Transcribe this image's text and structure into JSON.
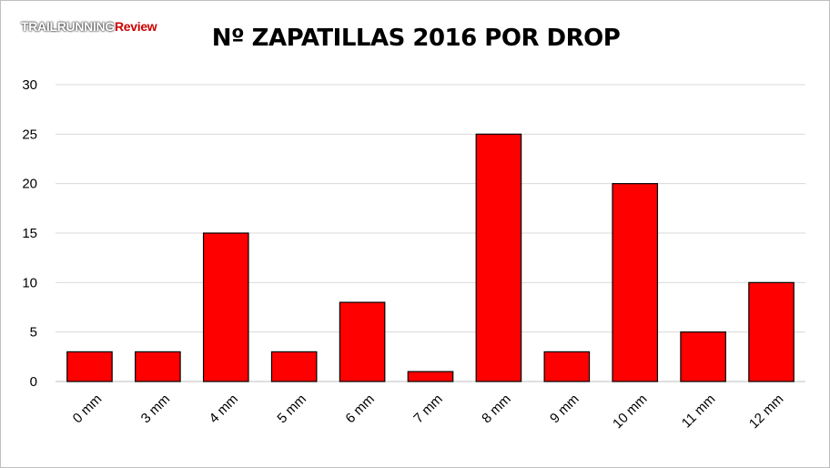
{
  "watermark": {
    "part1": "TRAILRUNNING",
    "part2": "Review"
  },
  "colors": {
    "bar": "#ff0000",
    "bar_stroke": "#000000",
    "grid": "#d9d9d9",
    "axis": "#bfbfbf"
  },
  "chart_data": {
    "type": "bar",
    "title": "Nº ZAPATILLAS 2016 POR DROP",
    "xlabel": "",
    "ylabel": "",
    "categories": [
      "0 mm",
      "3 mm",
      "4 mm",
      "5 mm",
      "6 mm",
      "7 mm",
      "8 mm",
      "9 mm",
      "10 mm",
      "11 mm",
      "12 mm"
    ],
    "values": [
      3,
      3,
      15,
      3,
      8,
      1,
      25,
      3,
      20,
      5,
      10
    ],
    "ylim": [
      0,
      30
    ],
    "yticks": [
      0,
      5,
      10,
      15,
      20,
      25,
      30
    ],
    "grid": true,
    "legend": "none"
  }
}
